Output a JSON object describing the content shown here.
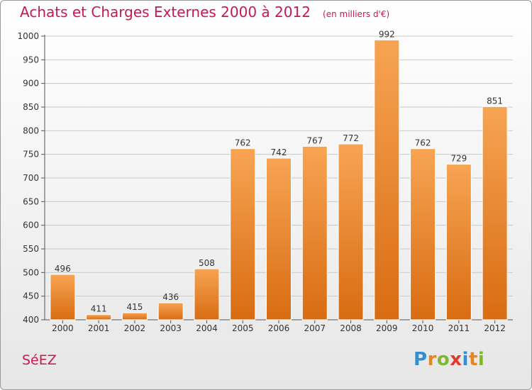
{
  "chart_data": {
    "type": "bar",
    "title": "Achats et Charges Externes 2000 à 2012",
    "unit_note": "(en milliers d'€)",
    "categories": [
      "2000",
      "2001",
      "2002",
      "2003",
      "2004",
      "2005",
      "2006",
      "2007",
      "2008",
      "2009",
      "2010",
      "2011",
      "2012"
    ],
    "values": [
      496,
      411,
      415,
      436,
      508,
      762,
      742,
      767,
      772,
      992,
      762,
      729,
      851
    ],
    "ylim": [
      400,
      1000
    ],
    "yticks": [
      400,
      450,
      500,
      550,
      600,
      650,
      700,
      750,
      800,
      850,
      900,
      950,
      1000
    ],
    "grid": true,
    "bar_color_top": "#f7a453",
    "bar_color_bottom": "#d86c12"
  },
  "footer": {
    "place": "SéEZ",
    "brand": "Proxiti"
  },
  "colors": {
    "title": "#c8194d",
    "grid": "#c8c8c8"
  }
}
